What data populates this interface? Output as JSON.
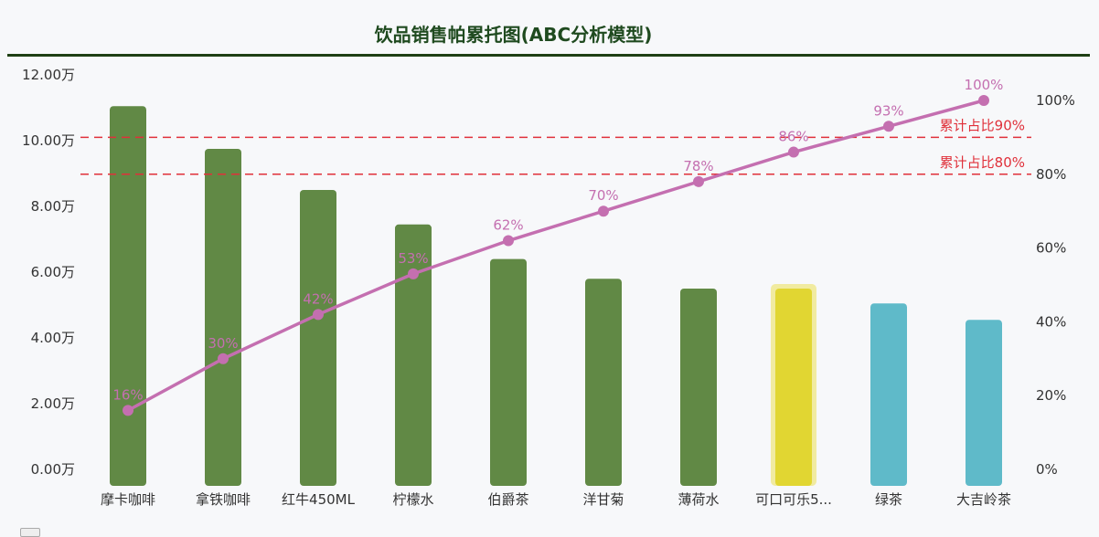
{
  "title": "饮品销售帕累托图(ABC分析模型)",
  "colors": {
    "class_a": "#618945",
    "class_b": "#e1d632",
    "class_b_halo": "#f1eba0",
    "class_c": "#5fbac9",
    "line": "#c46fb0",
    "ref_line": "#e0303a",
    "title": "#1f4a1f",
    "rule": "#1e3f14"
  },
  "chart_data": {
    "type": "bar",
    "title": "饮品销售帕累托图(ABC分析模型)",
    "categories": [
      "摩卡咖啡",
      "拿铁咖啡",
      "红牛450ML",
      "柠檬水",
      "伯爵茶",
      "洋甘菊",
      "薄荷水",
      "可口可乐5...",
      "绿茶",
      "大吉岭茶"
    ],
    "series": [
      {
        "type": "bar",
        "axis": "left",
        "values": [
          110500,
          97500,
          85000,
          74500,
          64000,
          58000,
          55000,
          55000,
          50500,
          45500
        ],
        "classes": [
          "A",
          "A",
          "A",
          "A",
          "A",
          "A",
          "A",
          "B",
          "C",
          "C"
        ]
      },
      {
        "type": "line",
        "axis": "right",
        "values": [
          16,
          30,
          42,
          53,
          62,
          70,
          78,
          86,
          93,
          100
        ],
        "labels": [
          "16%",
          "30%",
          "42%",
          "53%",
          "62%",
          "70%",
          "78%",
          "86%",
          "93%",
          "100%"
        ]
      }
    ],
    "y_left": {
      "ylim": [
        0,
        120000
      ],
      "ticks": [
        0,
        20000,
        40000,
        60000,
        80000,
        100000,
        120000
      ],
      "tick_labels": [
        "0.00万",
        "2.00万",
        "4.00万",
        "6.00万",
        "8.00万",
        "10.00万",
        "12.00万"
      ]
    },
    "y_right": {
      "ylim": [
        0,
        100
      ],
      "ticks": [
        0,
        20,
        40,
        60,
        80,
        100
      ],
      "tick_labels": [
        "0%",
        "20%",
        "40%",
        "60%",
        "80%",
        "100%"
      ]
    },
    "reference_lines": [
      {
        "axis": "right",
        "value": 90,
        "label": "累计占比90%"
      },
      {
        "axis": "right",
        "value": 80,
        "label": "累计占比80%"
      }
    ],
    "grid": false,
    "legend": "bottom-left"
  }
}
